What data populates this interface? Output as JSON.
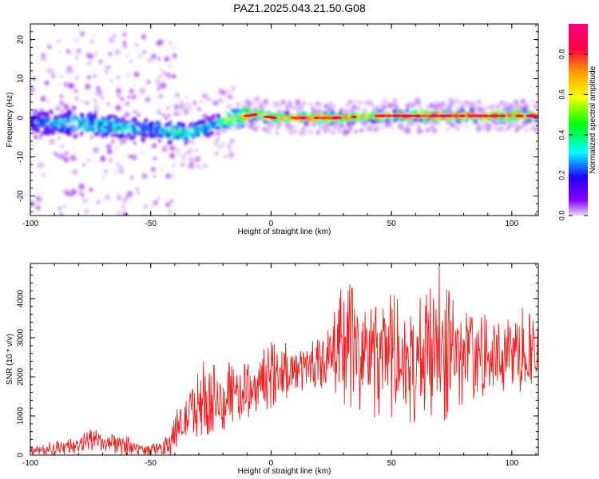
{
  "title": "PAZ1.2025.043.21.50.G08",
  "colors": {
    "snr_line": "#ee2222",
    "ridge_red": "#ff2222",
    "background": "#ffffff"
  },
  "chart_data": [
    {
      "type": "heatmap",
      "title": "PAZ1.2025.043.21.50.G08",
      "xlabel": "Height of straight line (km)",
      "ylabel": "Frequency (Hz)",
      "xlim": [
        -100,
        111
      ],
      "ylim": [
        -25,
        24
      ],
      "x_ticks": [
        -100,
        -50,
        0,
        50,
        100
      ],
      "y_ticks": [
        -20,
        -10,
        0,
        10,
        20
      ],
      "colorbar": {
        "label": "Normalized spectral amplitude",
        "range": [
          0,
          0.95
        ],
        "ticks": [
          0.0,
          0.2,
          0.4,
          0.6,
          0.8
        ],
        "colormap": [
          "#e8d8f8",
          "#8800ff",
          "#2200ff",
          "#00ffff",
          "#00ff00",
          "#ffff00",
          "#ff9900",
          "#ff0044",
          "#ff0080"
        ]
      },
      "ridge": {
        "x": [
          -100,
          -90,
          -80,
          -70,
          -60,
          -50,
          -45,
          -40,
          -35,
          -30,
          -25,
          -20,
          -15,
          -10,
          -5,
          0,
          5,
          10,
          20,
          30,
          40,
          50,
          60,
          70,
          80,
          90,
          100,
          111
        ],
        "y": [
          -1,
          -1.5,
          -1.5,
          -2,
          -2.5,
          -3,
          -3,
          -3.5,
          -4,
          -3,
          -2,
          -1,
          0,
          0.5,
          1,
          0,
          0,
          0,
          0,
          0,
          0.5,
          0.5,
          0.5,
          0.5,
          0.5,
          0.5,
          0.5,
          0.5
        ],
        "amplitude": [
          0.3,
          0.35,
          0.45,
          0.4,
          0.4,
          0.3,
          0.4,
          0.45,
          0.5,
          0.45,
          0.4,
          0.5,
          0.7,
          0.75,
          0.7,
          0.75,
          0.8,
          0.85,
          0.85,
          0.8,
          0.75,
          0.8,
          0.85,
          0.85,
          0.9,
          0.9,
          0.85,
          0.8
        ]
      }
    },
    {
      "type": "line",
      "xlabel": "Height of straight line (km)",
      "ylabel": "SNR (10 * v/v)",
      "xlim": [
        -100,
        111
      ],
      "ylim": [
        0,
        4900
      ],
      "x_ticks": [
        -100,
        -50,
        0,
        50,
        100
      ],
      "y_ticks": [
        0,
        1000,
        2000,
        3000,
        4000
      ],
      "grid": false,
      "envelope": {
        "x": [
          -100,
          -80,
          -75,
          -70,
          -60,
          -55,
          -50,
          -45,
          -42,
          -40,
          -35,
          -30,
          -25,
          -20,
          -17,
          -15,
          -10,
          -5,
          0,
          5,
          10,
          15,
          20,
          25,
          30,
          35,
          40,
          45,
          50,
          55,
          60,
          65,
          70,
          75,
          80,
          85,
          90,
          95,
          100,
          105,
          111
        ],
        "low": [
          0,
          0,
          50,
          0,
          0,
          0,
          0,
          0,
          0,
          100,
          300,
          400,
          500,
          600,
          700,
          800,
          900,
          1100,
          1200,
          1400,
          1500,
          1600,
          1700,
          1600,
          1100,
          1000,
          1000,
          900,
          900,
          800,
          800,
          1000,
          700,
          1000,
          1200,
          1300,
          1400,
          1500,
          1500,
          1500,
          1600
        ],
        "high": [
          250,
          450,
          800,
          550,
          500,
          320,
          250,
          450,
          700,
          1100,
          1600,
          2450,
          2500,
          1900,
          3100,
          2200,
          2400,
          2600,
          2900,
          3000,
          2800,
          2900,
          3000,
          3400,
          4500,
          4300,
          4300,
          4200,
          4300,
          4000,
          4000,
          4300,
          4900,
          4000,
          3700,
          3500,
          3800,
          3400,
          3700,
          3900,
          3300
        ]
      }
    }
  ]
}
